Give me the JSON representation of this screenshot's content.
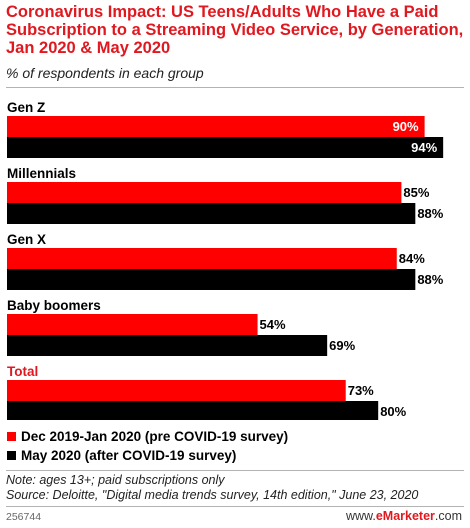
{
  "chart_data": {
    "type": "bar",
    "orientation": "horizontal",
    "title": "Coronavirus Impact: US Teens/Adults Who Have a Paid Subscription to a Streaming Video Service, by Generation, Jan 2020 & May 2020",
    "subtitle": "% of respondents in each group",
    "categories": [
      "Gen Z",
      "Millennials",
      "Gen X",
      "Baby boomers",
      "Total"
    ],
    "value_suffix": "%",
    "xlim": [
      0,
      100
    ],
    "grid": false,
    "legend_position": "bottom-left",
    "series": [
      {
        "name": "Dec 2019-Jan 2020 (pre COVID-19 survey)",
        "color": "#ff0000",
        "values": [
          90,
          85,
          84,
          54,
          73
        ]
      },
      {
        "name": "May 2020 (after COVID-19 survey)",
        "color": "#000000",
        "values": [
          94,
          88,
          88,
          69,
          80
        ]
      }
    ],
    "highlight_category_color": "#e0181f"
  },
  "footer": {
    "note": "Note: ages 13+; paid subscriptions only",
    "source": "Source: Deloitte, \"Digital media trends survey, 14th edition,\" June 23, 2020",
    "chart_id": "256744",
    "brand_prefix": "www.",
    "brand_name": "eMarketer",
    "brand_suffix": ".com"
  }
}
